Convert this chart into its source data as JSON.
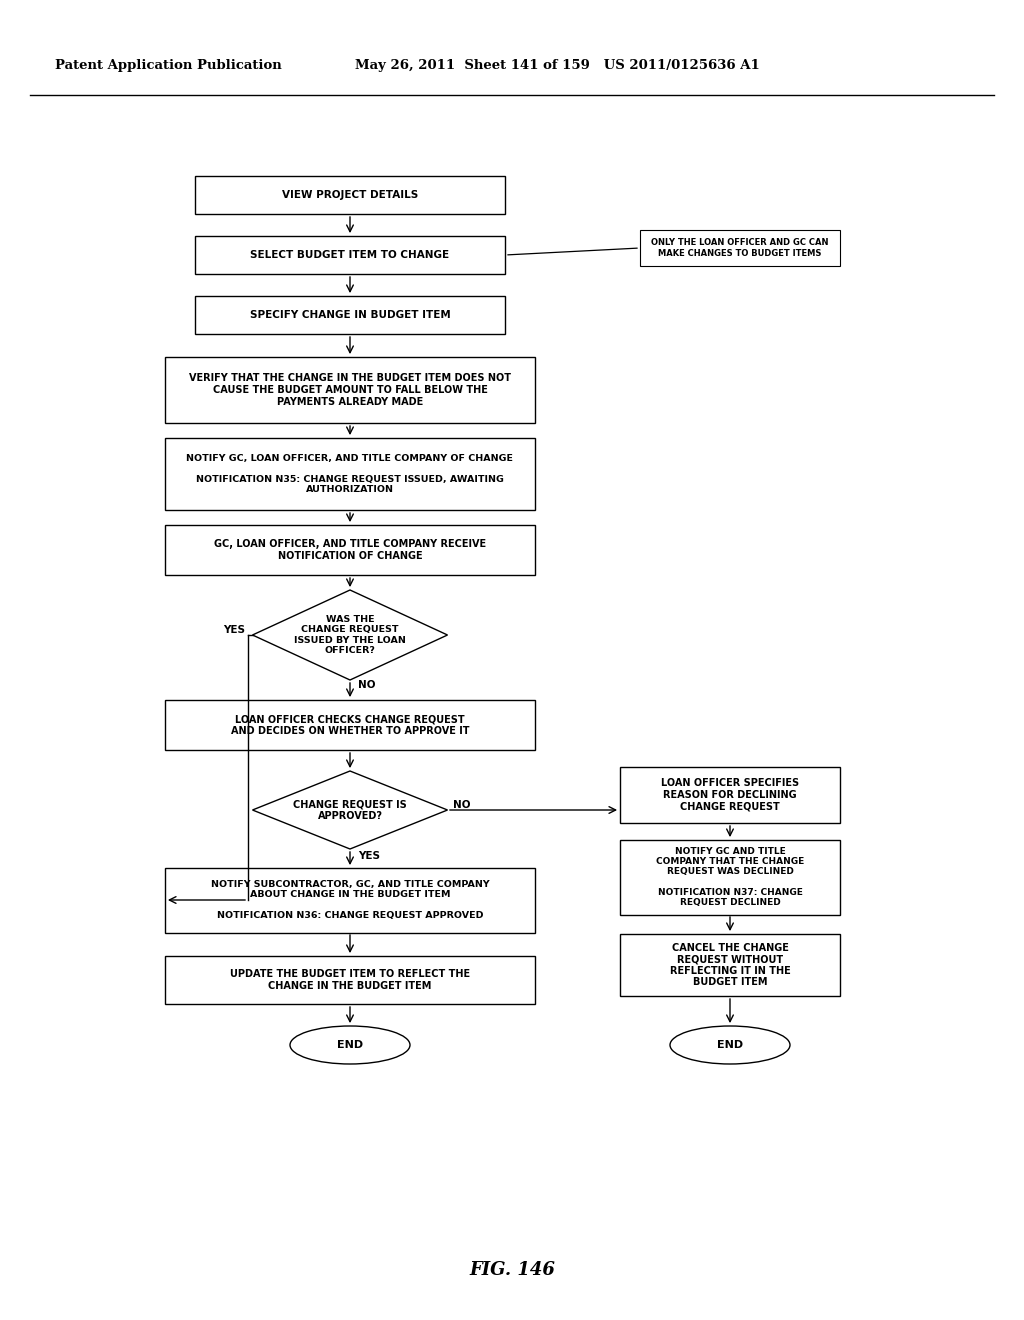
{
  "title_left": "Patent Application Publication",
  "title_mid": "May 26, 2011  Sheet 141 of 159   US 2011/0125636 A1",
  "fig_label": "FIG. 146",
  "background": "#ffffff"
}
